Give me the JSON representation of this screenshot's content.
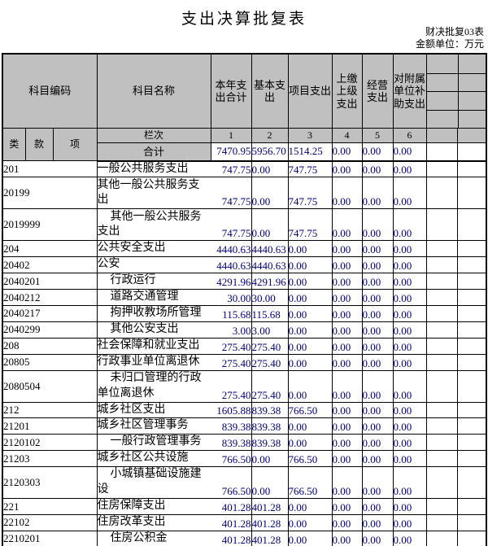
{
  "title": "支出决算批复表",
  "doc_refs": {
    "form_no": "财决批复03表",
    "unit_note": "金额单位：万元"
  },
  "colors": {
    "header_bg": "#C0C0C0",
    "value_text": "#000080",
    "border": "#000000"
  },
  "table": {
    "header": {
      "subject_code": "科目编码",
      "subject_name": "科目名称",
      "code_parts": [
        "类",
        "款",
        "项"
      ],
      "cols": [
        "本年支出合计",
        "基本支出",
        "项目支出",
        "上缴上级支出",
        "经营支出",
        "对附属单位补助支出"
      ],
      "lanci_label": "栏次",
      "col_numbers": [
        "1",
        "2",
        "3",
        "4",
        "5",
        "6"
      ],
      "total_label": "合计"
    },
    "total_row": [
      "7470.95",
      "5956.70",
      "1514.25",
      "0.00",
      "0.00",
      "0.00"
    ],
    "rows": [
      {
        "code": "201",
        "name": "一般公共服务支出",
        "level": 1,
        "tall": false,
        "values": [
          "747.75",
          "0.00",
          "747.75",
          "0.00",
          "0.00",
          "0.00"
        ]
      },
      {
        "code": "20199",
        "name": "其他一般公共服务支出",
        "level": 2,
        "tall": true,
        "values": [
          "747.75",
          "0.00",
          "747.75",
          "0.00",
          "0.00",
          "0.00"
        ]
      },
      {
        "code": "2019999",
        "name": "其他一般公共服务支出",
        "level": 3,
        "tall": true,
        "values": [
          "747.75",
          "0.00",
          "747.75",
          "0.00",
          "0.00",
          "0.00"
        ]
      },
      {
        "code": "204",
        "name": "公共安全支出",
        "level": 1,
        "tall": false,
        "values": [
          "4440.63",
          "4440.63",
          "0.00",
          "0.00",
          "0.00",
          "0.00"
        ]
      },
      {
        "code": "20402",
        "name": "公安",
        "level": 2,
        "tall": false,
        "values": [
          "4440.63",
          "4440.63",
          "0.00",
          "0.00",
          "0.00",
          "0.00"
        ]
      },
      {
        "code": "2040201",
        "name": "行政运行",
        "level": 3,
        "tall": false,
        "values": [
          "4291.96",
          "4291.96",
          "0.00",
          "0.00",
          "0.00",
          "0.00"
        ]
      },
      {
        "code": "2040212",
        "name": "道路交通管理",
        "level": 3,
        "tall": false,
        "values": [
          "30.00",
          "30.00",
          "0.00",
          "0.00",
          "0.00",
          "0.00"
        ]
      },
      {
        "code": "2040217",
        "name": "拘押收教场所管理",
        "level": 3,
        "tall": false,
        "values": [
          "115.68",
          "115.68",
          "0.00",
          "0.00",
          "0.00",
          "0.00"
        ]
      },
      {
        "code": "2040299",
        "name": "其他公安支出",
        "level": 3,
        "tall": false,
        "values": [
          "3.00",
          "3.00",
          "0.00",
          "0.00",
          "0.00",
          "0.00"
        ]
      },
      {
        "code": "208",
        "name": "社会保障和就业支出",
        "level": 1,
        "tall": false,
        "values": [
          "275.40",
          "275.40",
          "0.00",
          "0.00",
          "0.00",
          "0.00"
        ]
      },
      {
        "code": "20805",
        "name": "行政事业单位离退休",
        "level": 2,
        "tall": false,
        "values": [
          "275.40",
          "275.40",
          "0.00",
          "0.00",
          "0.00",
          "0.00"
        ]
      },
      {
        "code": "2080504",
        "name": "未归口管理的行政单位离退休",
        "level": 3,
        "tall": true,
        "values": [
          "275.40",
          "275.40",
          "0.00",
          "0.00",
          "0.00",
          "0.00"
        ]
      },
      {
        "code": "212",
        "name": "城乡社区支出",
        "level": 1,
        "tall": false,
        "values": [
          "1605.88",
          "839.38",
          "766.50",
          "0.00",
          "0.00",
          "0.00"
        ]
      },
      {
        "code": "21201",
        "name": "城乡社区管理事务",
        "level": 2,
        "tall": false,
        "values": [
          "839.38",
          "839.38",
          "0.00",
          "0.00",
          "0.00",
          "0.00"
        ]
      },
      {
        "code": "2120102",
        "name": "一般行政管理事务",
        "level": 3,
        "tall": false,
        "values": [
          "839.38",
          "839.38",
          "0.00",
          "0.00",
          "0.00",
          "0.00"
        ]
      },
      {
        "code": "21203",
        "name": "城乡社区公共设施",
        "level": 2,
        "tall": false,
        "values": [
          "766.50",
          "0.00",
          "766.50",
          "0.00",
          "0.00",
          "0.00"
        ]
      },
      {
        "code": "2120303",
        "name": "小城镇基础设施建设",
        "level": 3,
        "tall": true,
        "values": [
          "766.50",
          "0.00",
          "766.50",
          "0.00",
          "0.00",
          "0.00"
        ]
      },
      {
        "code": "221",
        "name": "住房保障支出",
        "level": 1,
        "tall": false,
        "values": [
          "401.28",
          "401.28",
          "0.00",
          "0.00",
          "0.00",
          "0.00"
        ]
      },
      {
        "code": "22102",
        "name": "住房改革支出",
        "level": 2,
        "tall": false,
        "values": [
          "401.28",
          "401.28",
          "0.00",
          "0.00",
          "0.00",
          "0.00"
        ]
      },
      {
        "code": "2210201",
        "name": "住房公积金",
        "level": 3,
        "tall": false,
        "values": [
          "401.28",
          "401.28",
          "0.00",
          "0.00",
          "0.00",
          "0.00"
        ]
      }
    ]
  }
}
